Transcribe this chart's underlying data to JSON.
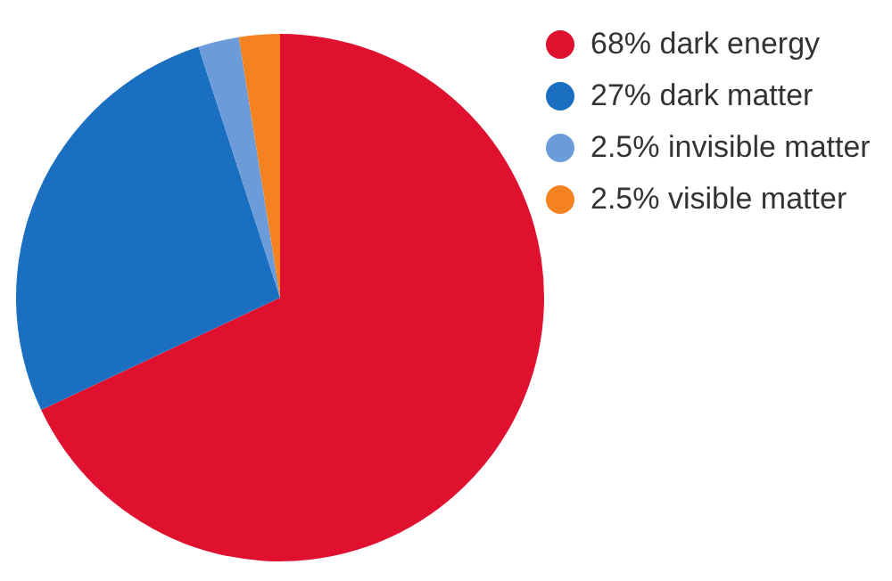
{
  "chart_data": {
    "type": "pie",
    "categories": [
      "dark energy",
      "dark matter",
      "invisible matter",
      "visible matter"
    ],
    "values": [
      68,
      27,
      2.5,
      2.5
    ],
    "value_labels": [
      "68%",
      "27%",
      "2.5%",
      "2.5%"
    ],
    "colors": [
      "#e0102f",
      "#1a6fc0",
      "#6b9bd8",
      "#f58220"
    ],
    "legend": "right"
  }
}
